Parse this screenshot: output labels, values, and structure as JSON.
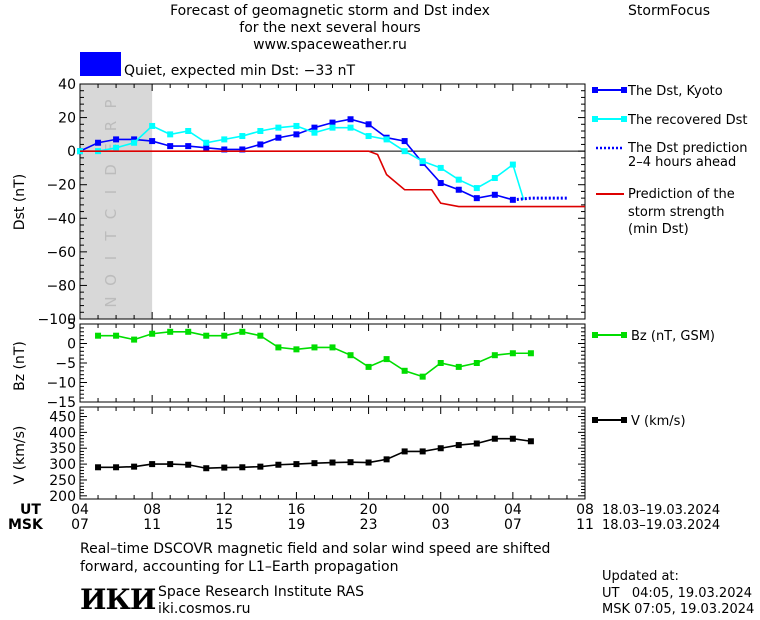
{
  "header": {
    "title_lines": [
      "Forecast of geomagnetic storm and Dst index",
      "for the next several hours",
      "www.spaceweather.ru"
    ],
    "brand": "StormFocus"
  },
  "status": {
    "text": "Quiet, expected min Dst: −33 nT",
    "color": "#0000ff"
  },
  "legend": {
    "dst_kyoto": "The Dst, Kyoto",
    "recovered": "The recovered Dst",
    "prediction_line1": "The Dst prediction",
    "prediction_line2": "2–4 hours ahead",
    "storm_line1": "Prediction of the",
    "storm_line2": "storm strength",
    "storm_line3": "(min Dst)",
    "bz": "Bz (nT, GSM)",
    "v": "V (km/s)"
  },
  "chart_data": [
    {
      "type": "line",
      "panel": "dst",
      "ylabel": "Dst (nT)",
      "ylim": [
        -100,
        40
      ],
      "yticks": [
        "40",
        "20",
        "0",
        "−20",
        "−40",
        "−60",
        "−80",
        "−100"
      ],
      "prediction_zone_label": "PREDICTION",
      "prediction_zone": [
        4.0,
        8.0
      ],
      "series": [
        {
          "name": "The Dst, Kyoto",
          "color": "#0000ff",
          "marker": "square",
          "x": [
            4,
            5,
            6,
            7,
            8,
            9,
            10,
            11,
            12,
            13,
            14,
            15,
            16,
            17,
            18,
            19,
            20,
            21,
            22,
            23,
            24,
            25,
            26,
            27,
            28
          ],
          "y": [
            0,
            5,
            7,
            7,
            6,
            3,
            3,
            2,
            1,
            1,
            4,
            8,
            10,
            14,
            17,
            19,
            16,
            8,
            6,
            -7,
            -19,
            -23,
            -28,
            -26,
            -29
          ]
        },
        {
          "name": "The recovered Dst",
          "color": "#00ffff",
          "marker": "square",
          "x": [
            4,
            5,
            6,
            7,
            8,
            9,
            10,
            11,
            12,
            13,
            14,
            15,
            16,
            17,
            18,
            19,
            20,
            21,
            22,
            23,
            24,
            25,
            26,
            27,
            28,
            28.6
          ],
          "y": [
            0,
            0,
            2,
            5,
            15,
            10,
            12,
            5,
            7,
            9,
            12,
            14,
            15,
            11,
            14,
            14,
            9,
            7,
            0,
            -6,
            -10,
            -17,
            -22,
            -16,
            -8,
            -29
          ]
        },
        {
          "name": "The Dst prediction 2–4 hours ahead",
          "color": "#0000ff",
          "dashed": true,
          "x": [
            28,
            29,
            31
          ],
          "y": [
            -29,
            -28,
            -28
          ]
        },
        {
          "name": "Prediction of the storm strength (min Dst)",
          "color": "#dd0000",
          "step": true,
          "x": [
            4,
            20,
            20.5,
            21,
            22,
            22.6,
            23.5,
            24,
            25,
            32
          ],
          "y": [
            0,
            0,
            -2,
            -14,
            -23,
            -23,
            -23,
            -31,
            -33,
            -33
          ]
        }
      ]
    },
    {
      "type": "line",
      "panel": "bz",
      "ylabel": "Bz (nT)",
      "ylim": [
        -15,
        5
      ],
      "yticks": [
        "5",
        "0",
        "−5",
        "−10",
        "−15"
      ],
      "series": [
        {
          "name": "Bz (nT, GSM)",
          "color": "#00dd00",
          "marker": "square",
          "x": [
            5,
            6,
            7,
            8,
            9,
            10,
            11,
            12,
            13,
            14,
            15,
            16,
            17,
            18,
            19,
            20,
            21,
            22,
            23,
            24,
            25,
            26,
            27,
            28,
            29
          ],
          "y": [
            2,
            2,
            1,
            2.5,
            3,
            3,
            2,
            2,
            3,
            2,
            -1,
            -1.5,
            -1,
            -1,
            -3,
            -6,
            -4,
            -7,
            -8.5,
            -5,
            -6,
            -5,
            -3,
            -2.5,
            -2.5
          ]
        }
      ]
    },
    {
      "type": "line",
      "panel": "v",
      "ylabel": "V (km/s)",
      "ylim": [
        190,
        480
      ],
      "yticks": [
        "450",
        "400",
        "350",
        "300",
        "250",
        "200"
      ],
      "series": [
        {
          "name": "V (km/s)",
          "color": "#000000",
          "marker": "square",
          "x": [
            5,
            6,
            7,
            8,
            9,
            10,
            11,
            12,
            13,
            14,
            15,
            16,
            17,
            18,
            19,
            20,
            21,
            22,
            23,
            24,
            25,
            26,
            27,
            28,
            29
          ],
          "y": [
            290,
            290,
            292,
            300,
            300,
            298,
            287,
            289,
            290,
            292,
            298,
            300,
            303,
            305,
            306,
            305,
            315,
            340,
            340,
            350,
            360,
            365,
            380,
            380,
            372
          ]
        }
      ]
    }
  ],
  "time_axis": {
    "ut_label": "UT",
    "msk_label": "MSK",
    "ut_ticks": [
      "04",
      "08",
      "12",
      "16",
      "20",
      "00",
      "04",
      "08"
    ],
    "msk_ticks": [
      "07",
      "11",
      "15",
      "19",
      "23",
      "03",
      "07",
      "11"
    ],
    "ut_range": "18.03–19.03.2024",
    "msk_range": "18.03–19.03.2024"
  },
  "footer": {
    "note_line1": "Real–time DSCOVR magnetic field and solar wind speed are shifted",
    "note_line2": "forward, accounting for L1–Earth propagation",
    "logo": "ИКИ",
    "org_name": "Space Research Institute RAS",
    "org_site": "iki.cosmos.ru",
    "updated_label": "Updated at:",
    "updated_ut": "UT   04:05, 19.03.2024",
    "updated_msk": "MSK 07:05, 19.03.2024"
  }
}
